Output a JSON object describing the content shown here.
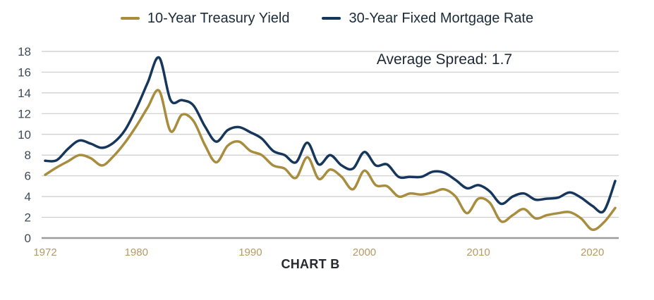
{
  "caption": "CHART B",
  "colors": {
    "treasury_gold": "#a88d3f",
    "mortgage_navy": "#16365c",
    "grid": "#cccccc",
    "zero_axis": "#9b9b9b",
    "y_tick_text": "#3e4a57",
    "x_tick_text": "#b59a62",
    "annotation_text": "#1e2835",
    "caption_text": "#26292e",
    "legend_text": "#1c2b3a"
  },
  "chart_data": {
    "type": "line",
    "title": "",
    "xlabel": "",
    "ylabel": "",
    "annotation": "Average Spread: 1.7",
    "caption": "CHART B",
    "legend_position": "top",
    "grid": true,
    "xlim": [
      1972,
      2022
    ],
    "ylim": [
      0,
      18
    ],
    "xticks": [
      1972,
      1980,
      1990,
      2000,
      2010,
      2020
    ],
    "yticks": [
      0,
      2,
      4,
      6,
      8,
      10,
      12,
      14,
      16,
      18
    ],
    "x": [
      1972,
      1973,
      1974,
      1975,
      1976,
      1977,
      1978,
      1979,
      1980,
      1981,
      1982,
      1983,
      1984,
      1985,
      1986,
      1987,
      1988,
      1989,
      1990,
      1991,
      1992,
      1993,
      1994,
      1995,
      1996,
      1997,
      1998,
      1999,
      2000,
      2001,
      2002,
      2003,
      2004,
      2005,
      2006,
      2007,
      2008,
      2009,
      2010,
      2011,
      2012,
      2013,
      2014,
      2015,
      2016,
      2017,
      2018,
      2019,
      2020,
      2021,
      2022
    ],
    "series": [
      {
        "name": "10-Year Treasury Yield",
        "color": "#a88d3f",
        "values": [
          6.1,
          6.8,
          7.4,
          8.0,
          7.7,
          7.0,
          7.9,
          9.2,
          10.8,
          12.6,
          14.2,
          10.3,
          11.9,
          11.3,
          9.0,
          7.3,
          8.9,
          9.3,
          8.4,
          8.0,
          7.0,
          6.7,
          5.8,
          7.8,
          5.7,
          6.6,
          5.9,
          4.7,
          6.5,
          5.1,
          5.0,
          4.0,
          4.3,
          4.2,
          4.4,
          4.7,
          4.0,
          2.4,
          3.8,
          3.4,
          1.6,
          2.2,
          2.8,
          1.9,
          2.2,
          2.4,
          2.5,
          1.9,
          0.8,
          1.5,
          2.9
        ]
      },
      {
        "name": "30-Year Fixed Mortgage Rate",
        "color": "#16365c",
        "values": [
          7.45,
          7.5,
          8.6,
          9.4,
          9.1,
          8.7,
          9.2,
          10.4,
          12.5,
          15.0,
          17.4,
          13.3,
          13.3,
          12.8,
          10.8,
          9.3,
          10.4,
          10.7,
          10.2,
          9.6,
          8.4,
          8.0,
          7.3,
          9.2,
          7.1,
          8.0,
          7.0,
          6.7,
          8.3,
          7.0,
          7.1,
          5.9,
          5.9,
          5.9,
          6.4,
          6.3,
          5.6,
          4.8,
          5.1,
          4.5,
          3.3,
          4.0,
          4.3,
          3.7,
          3.8,
          3.9,
          4.4,
          3.9,
          3.1,
          2.6,
          5.5
        ]
      }
    ]
  }
}
